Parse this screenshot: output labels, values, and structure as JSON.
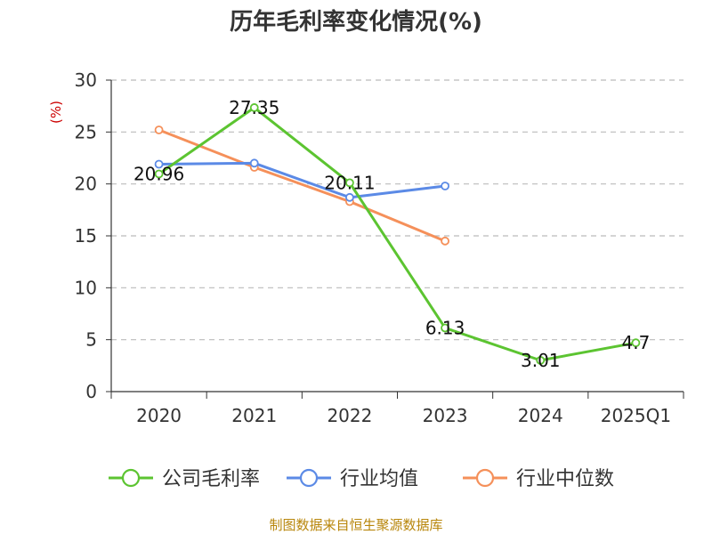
{
  "colors": {
    "series": [
      "#5cc431",
      "#5b8ae6",
      "#f5905a"
    ],
    "grid": "#bbbbbb",
    "axis": "#333333"
  },
  "source_note": "制图数据来自恒生聚源数据库",
  "chart_data": {
    "type": "line",
    "title": "历年毛利率变化情况(%)",
    "ylabel": "(%)",
    "xlabel": "",
    "categories": [
      "2020",
      "2021",
      "2022",
      "2023",
      "2024",
      "2025Q1"
    ],
    "ylim": [
      0,
      30
    ],
    "yticks": [
      0,
      5,
      10,
      15,
      20,
      25,
      30
    ],
    "grid": "horizontal-dashed",
    "legend": "bottom-center",
    "series": [
      {
        "name": "公司毛利率",
        "values": [
          20.96,
          27.35,
          20.11,
          6.13,
          3.01,
          4.7
        ],
        "labels": [
          "20.96",
          "27.35",
          "20.11",
          "6.13",
          "3.01",
          "4.7"
        ]
      },
      {
        "name": "行业均值",
        "values": [
          21.9,
          22.0,
          18.7,
          19.8,
          null,
          null
        ]
      },
      {
        "name": "行业中位数",
        "values": [
          25.2,
          21.6,
          18.3,
          14.5,
          null,
          null
        ]
      }
    ]
  }
}
